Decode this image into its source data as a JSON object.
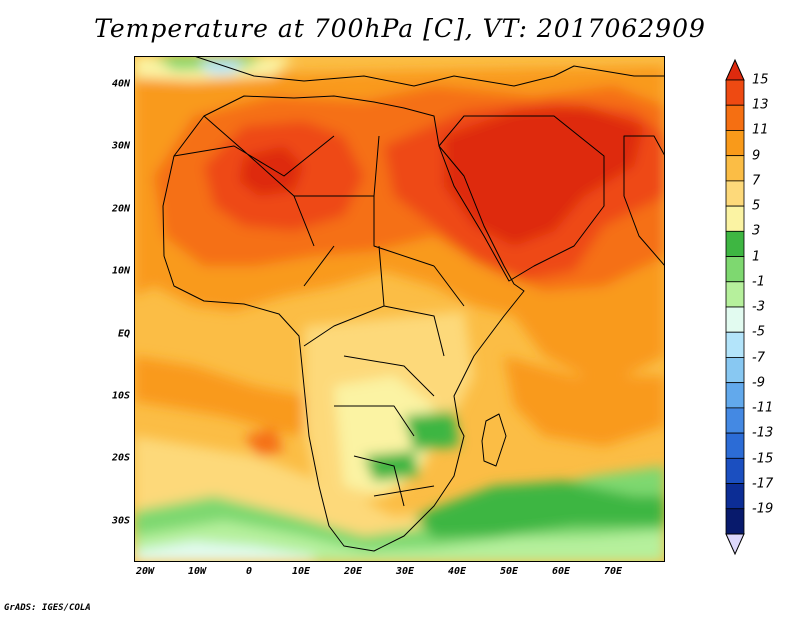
{
  "title": "Temperature at 700hPa [C], VT: 2017062909",
  "credit": "GrADS: IGES/COLA",
  "map": {
    "lat_labels": [
      "40N",
      "30N",
      "20N",
      "10N",
      "EQ",
      "10S",
      "20S",
      "30S"
    ],
    "lon_labels": [
      "20W",
      "10W",
      "0",
      "10E",
      "20E",
      "30E",
      "40E",
      "50E",
      "60E",
      "70E"
    ]
  },
  "colorbar": {
    "labels": [
      "15",
      "13",
      "11",
      "9",
      "7",
      "5",
      "3",
      "1",
      "-1",
      "-3",
      "-5",
      "-7",
      "-9",
      "-11",
      "-13",
      "-15",
      "-17",
      "-19"
    ],
    "colors": [
      "#de2a0e",
      "#ee4a12",
      "#f56f12",
      "#f99a1a",
      "#fbbd45",
      "#fdd97a",
      "#fbf3a3",
      "#3eb642",
      "#7ed870",
      "#b6f09c",
      "#e2fbf0",
      "#b3e4fa",
      "#88c8f2",
      "#62a9ec",
      "#4489e3",
      "#2c6cd6",
      "#1b4fc0",
      "#0c2d95",
      "#081a6c",
      "#ddd8fb"
    ]
  }
}
